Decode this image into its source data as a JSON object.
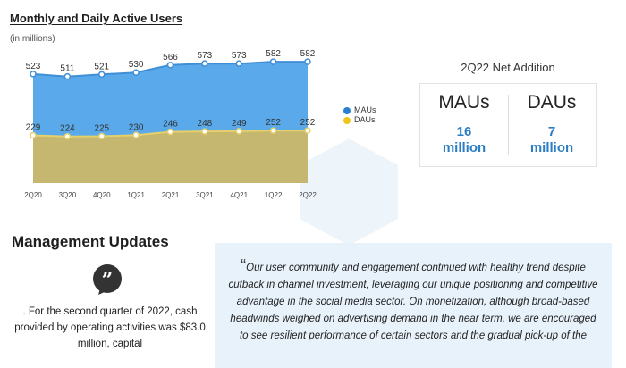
{
  "chart_data": {
    "type": "area",
    "title": "Monthly and Daily Active Users",
    "subtitle": "(in millions)",
    "categories": [
      "2Q20",
      "3Q20",
      "4Q20",
      "1Q21",
      "2Q21",
      "3Q21",
      "4Q21",
      "1Q22",
      "2Q22"
    ],
    "series": [
      {
        "name": "MAUs",
        "values": [
          523,
          511,
          521,
          530,
          566,
          573,
          573,
          582,
          582
        ],
        "color": "#5aa9ea",
        "line_color": "#3f8fd6"
      },
      {
        "name": "DAUs",
        "values": [
          229,
          224,
          225,
          230,
          246,
          248,
          249,
          252,
          252
        ],
        "color": "#c6b770",
        "line_color": "#e6d06a"
      }
    ],
    "ylim": [
      0,
      640
    ],
    "legend": [
      "MAUs",
      "DAUs"
    ],
    "legend_position": "right"
  },
  "net_addition": {
    "title": "2Q22 Net Addition",
    "items": [
      {
        "label": "MAUs",
        "value": "16",
        "unit": "million"
      },
      {
        "label": "DAUs",
        "value": "7",
        "unit": "million"
      }
    ]
  },
  "management": {
    "title": "Management Updates",
    "cash_text": ". For the second quarter of 2022, cash provided by operating activities was $83.0 million, capital",
    "quote_open": "“",
    "quote": "Our user community and engagement continued with healthy trend despite cutback in channel investment, leveraging our unique positioning and competitive advantage in the social media sector. On monetization, although broad-based headwinds weighed on advertising demand in the near term, we are encouraged to see resilient performance of certain sectors and the gradual pick-up of the"
  }
}
